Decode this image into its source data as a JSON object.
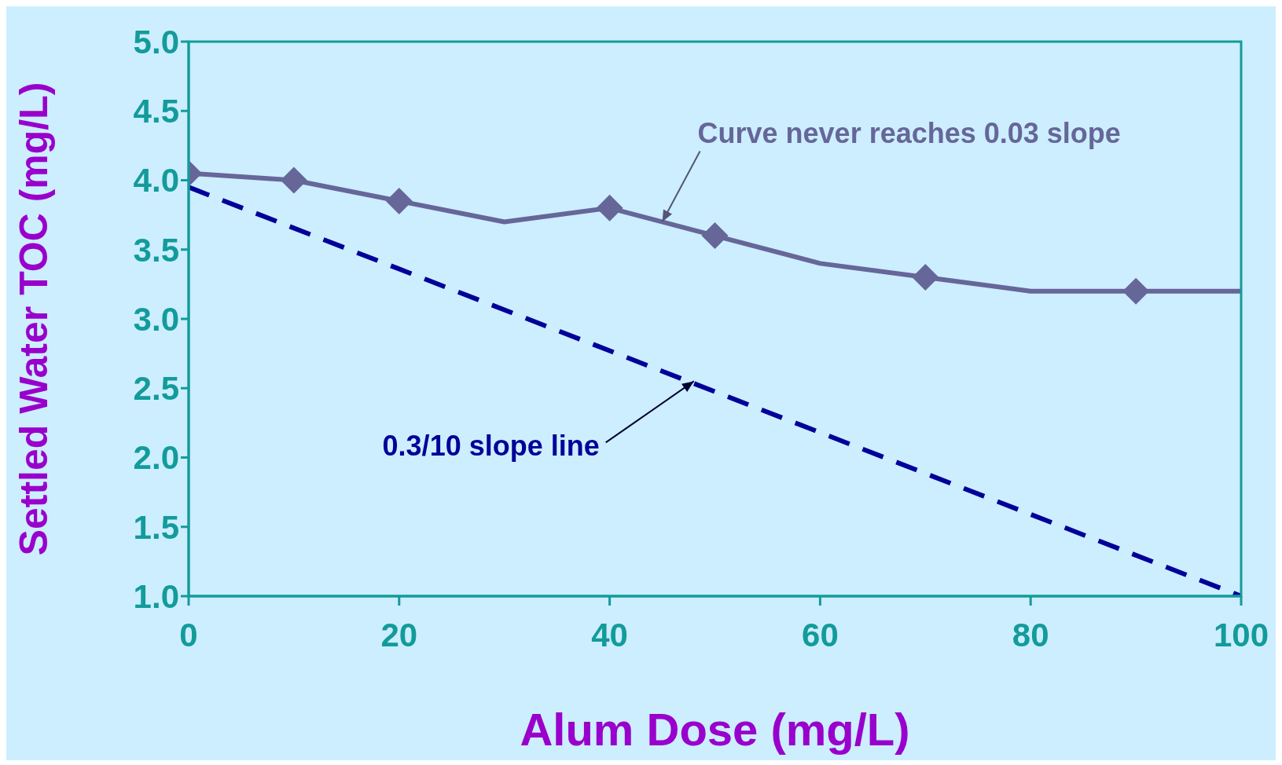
{
  "chart_data": {
    "type": "line",
    "xlabel": "Alum Dose (mg/L)",
    "ylabel": "Settled Water TOC (mg/L)",
    "xlim": [
      0,
      100
    ],
    "xticks": [
      0,
      20,
      40,
      60,
      80,
      100
    ],
    "ylim": [
      1.0,
      5.0
    ],
    "yticks": [
      {
        "value": 1,
        "label": "1.0"
      },
      {
        "value": 1.5,
        "label": "1.5"
      },
      {
        "value": 2,
        "label": "2.0"
      },
      {
        "value": 2.5,
        "label": "2.5"
      },
      {
        "value": 3,
        "label": "3.0"
      },
      {
        "value": 3.5,
        "label": "3.5"
      },
      {
        "value": 4,
        "label": "4.0"
      },
      {
        "value": 4.5,
        "label": "4.5"
      },
      {
        "value": 5,
        "label": "5.0"
      }
    ],
    "series": [
      {
        "color": "#666699",
        "marker": "none",
        "line_style": "solid",
        "x": [
          0,
          10,
          20,
          30,
          40,
          50,
          60,
          70,
          80,
          90,
          100
        ],
        "values": [
          4.05,
          4.0,
          3.85,
          3.7,
          3.8,
          3.6,
          3.4,
          3.3,
          3.2,
          3.2,
          3.2
        ]
      },
      {
        "type": "scatter",
        "color": "#666699",
        "marker": "diamond",
        "x": [
          0,
          10,
          20,
          40,
          50,
          70,
          90
        ],
        "values": [
          4.05,
          4.0,
          3.85,
          3.8,
          3.6,
          3.3,
          3.2
        ]
      },
      {
        "type": "line",
        "color": "#000099",
        "marker": "none",
        "line_style": "dashed",
        "x": [
          0,
          100
        ],
        "values": [
          3.95,
          1.0
        ]
      }
    ],
    "annotations": [
      {
        "text": "Curve never reaches 0.03 slope",
        "x": 45,
        "y": 3.7
      },
      {
        "text": "0.3/10 slope line",
        "x": 48,
        "y": 2.55
      }
    ],
    "grid": false,
    "legend": false
  }
}
